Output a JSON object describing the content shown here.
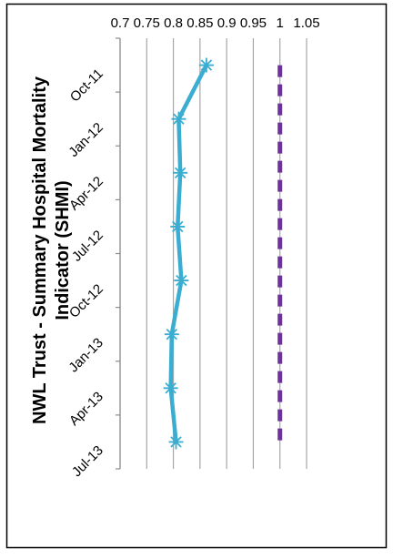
{
  "chart_data": {
    "type": "line",
    "title_lines": [
      "NWL Trust - Summary Hospital Mortality",
      "Indicator (SHMI)"
    ],
    "xlabel": "",
    "ylabel": "",
    "ylim": [
      0.7,
      1.05
    ],
    "yticks": [
      1.05,
      1,
      0.95,
      0.9,
      0.85,
      0.8,
      0.75,
      0.7
    ],
    "ytick_labels": [
      "1.05",
      "1",
      "0.95",
      "0.9",
      "0.85",
      "0.8",
      "0.75",
      "0.7"
    ],
    "categories": [
      "Oct-11",
      "Jan-12",
      "Apr-12",
      "Jul-12",
      "Oct-12",
      "Jan-13",
      "Apr-13",
      "Jul-13"
    ],
    "grid": true,
    "orientation": "rotated-90-clockwise",
    "series": [
      {
        "kind": "line-markers",
        "values": [
          0.862,
          0.81,
          0.813,
          0.808,
          0.815,
          0.797,
          0.795,
          0.805
        ],
        "color": "#3aadd1",
        "marker": "asterisk"
      },
      {
        "kind": "dashed-reference",
        "values": [
          1,
          1,
          1,
          1,
          1,
          1,
          1,
          1
        ],
        "color": "#7030a0"
      }
    ]
  }
}
